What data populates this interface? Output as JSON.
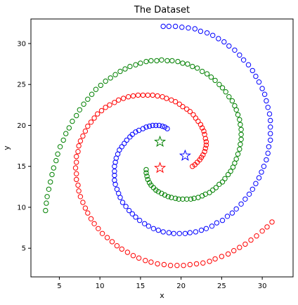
{
  "chart_data": {
    "type": "scatter",
    "title": "The Dataset",
    "xlabel": "x",
    "ylabel": "y",
    "xlim": [
      1.5,
      33.8
    ],
    "ylim": [
      1.5,
      33.0
    ],
    "xticks": [
      5,
      10,
      15,
      20,
      25,
      30
    ],
    "yticks": [
      5,
      10,
      15,
      20,
      25,
      30
    ],
    "grid": false,
    "colors": {
      "red": "#ff0000",
      "green": "#008000",
      "blue": "#0000ff"
    },
    "spiral_series": [
      {
        "color": "green",
        "marker": "hollow-circle",
        "points": [
          [
            15.7,
            14.6
          ],
          [
            15.7,
            14.2
          ],
          [
            15.8,
            13.8
          ],
          [
            15.9,
            13.4
          ],
          [
            16.1,
            13.0
          ],
          [
            16.3,
            12.7
          ],
          [
            16.6,
            12.4
          ],
          [
            16.9,
            12.1
          ],
          [
            17.2,
            11.9
          ],
          [
            17.6,
            11.7
          ],
          [
            18.0,
            11.5
          ],
          [
            18.4,
            11.3
          ],
          [
            18.8,
            11.2
          ],
          [
            19.3,
            11.1
          ],
          [
            19.7,
            11.0
          ],
          [
            20.2,
            11.0
          ],
          [
            20.7,
            11.0
          ],
          [
            21.2,
            11.0
          ],
          [
            21.6,
            11.1
          ],
          [
            22.1,
            11.2
          ],
          [
            22.6,
            11.4
          ],
          [
            23.0,
            11.6
          ],
          [
            23.5,
            11.8
          ],
          [
            23.9,
            12.1
          ],
          [
            24.3,
            12.4
          ],
          [
            24.7,
            12.8
          ],
          [
            25.1,
            13.1
          ],
          [
            25.4,
            13.5
          ],
          [
            25.8,
            14.0
          ],
          [
            26.1,
            14.4
          ],
          [
            26.4,
            14.9
          ],
          [
            26.6,
            15.4
          ],
          [
            26.8,
            15.9
          ],
          [
            27.0,
            16.5
          ],
          [
            27.2,
            17.1
          ],
          [
            27.3,
            17.7
          ],
          [
            27.4,
            18.3
          ],
          [
            27.4,
            18.9
          ],
          [
            27.4,
            19.5
          ],
          [
            27.3,
            20.1
          ],
          [
            27.2,
            20.7
          ],
          [
            27.0,
            21.3
          ],
          [
            26.8,
            21.9
          ],
          [
            26.6,
            22.4
          ],
          [
            26.3,
            23.0
          ],
          [
            25.9,
            23.5
          ],
          [
            25.5,
            24.1
          ],
          [
            25.1,
            24.6
          ],
          [
            24.7,
            25.0
          ],
          [
            24.2,
            25.5
          ],
          [
            23.7,
            25.9
          ],
          [
            23.2,
            26.3
          ],
          [
            22.6,
            26.6
          ],
          [
            22.0,
            27.0
          ],
          [
            21.4,
            27.2
          ],
          [
            20.8,
            27.5
          ],
          [
            20.2,
            27.6
          ],
          [
            19.6,
            27.8
          ],
          [
            18.9,
            27.9
          ],
          [
            18.3,
            27.9
          ],
          [
            17.6,
            28.0
          ],
          [
            17.0,
            27.9
          ],
          [
            16.3,
            27.9
          ],
          [
            15.7,
            27.8
          ],
          [
            15.0,
            27.6
          ],
          [
            14.4,
            27.4
          ],
          [
            13.7,
            27.2
          ],
          [
            13.1,
            26.9
          ],
          [
            12.5,
            26.6
          ],
          [
            11.9,
            26.2
          ],
          [
            11.3,
            25.8
          ],
          [
            10.7,
            25.4
          ],
          [
            10.1,
            24.9
          ],
          [
            9.5,
            24.4
          ],
          [
            9.0,
            23.8
          ],
          [
            8.5,
            23.2
          ],
          [
            8.0,
            22.6
          ],
          [
            7.5,
            21.9
          ],
          [
            7.1,
            21.2
          ],
          [
            6.6,
            20.5
          ],
          [
            6.2,
            19.7
          ],
          [
            5.8,
            19.0
          ],
          [
            5.5,
            18.2
          ],
          [
            5.1,
            17.4
          ],
          [
            4.8,
            16.5
          ],
          [
            4.6,
            15.7
          ],
          [
            4.3,
            14.8
          ],
          [
            4.1,
            14.0
          ],
          [
            3.9,
            13.1
          ],
          [
            3.7,
            12.2
          ],
          [
            3.5,
            11.3
          ],
          [
            3.4,
            10.5
          ],
          [
            3.3,
            9.6
          ]
        ]
      },
      {
        "color": "red",
        "marker": "hollow-circle",
        "points": [
          [
            21.4,
            15.0
          ],
          [
            21.7,
            15.2
          ],
          [
            22.0,
            15.5
          ],
          [
            22.3,
            15.8
          ],
          [
            22.5,
            16.1
          ],
          [
            22.7,
            16.4
          ],
          [
            22.9,
            16.8
          ],
          [
            23.0,
            17.2
          ],
          [
            23.1,
            17.6
          ],
          [
            23.1,
            18.0
          ],
          [
            23.0,
            18.4
          ],
          [
            22.9,
            18.9
          ],
          [
            22.8,
            19.3
          ],
          [
            22.6,
            19.7
          ],
          [
            22.4,
            20.1
          ],
          [
            22.1,
            20.5
          ],
          [
            21.8,
            20.9
          ],
          [
            21.5,
            21.3
          ],
          [
            21.1,
            21.7
          ],
          [
            20.7,
            22.0
          ],
          [
            20.2,
            22.3
          ],
          [
            19.8,
            22.6
          ],
          [
            19.3,
            22.9
          ],
          [
            18.8,
            23.1
          ],
          [
            18.2,
            23.3
          ],
          [
            17.7,
            23.5
          ],
          [
            17.1,
            23.6
          ],
          [
            16.5,
            23.7
          ],
          [
            15.9,
            23.7
          ],
          [
            15.3,
            23.7
          ],
          [
            14.7,
            23.7
          ],
          [
            14.1,
            23.6
          ],
          [
            13.5,
            23.5
          ],
          [
            12.9,
            23.3
          ],
          [
            12.3,
            23.1
          ],
          [
            11.8,
            22.8
          ],
          [
            11.2,
            22.5
          ],
          [
            10.7,
            22.2
          ],
          [
            10.2,
            21.8
          ],
          [
            9.7,
            21.4
          ],
          [
            9.3,
            20.9
          ],
          [
            8.9,
            20.4
          ],
          [
            8.5,
            19.9
          ],
          [
            8.2,
            19.3
          ],
          [
            7.9,
            18.7
          ],
          [
            7.6,
            18.1
          ],
          [
            7.4,
            17.5
          ],
          [
            7.3,
            16.8
          ],
          [
            7.1,
            16.2
          ],
          [
            7.1,
            15.5
          ],
          [
            7.0,
            14.8
          ],
          [
            7.1,
            14.1
          ],
          [
            7.1,
            13.4
          ],
          [
            7.3,
            12.7
          ],
          [
            7.4,
            12.0
          ],
          [
            7.6,
            11.3
          ],
          [
            7.9,
            10.6
          ],
          [
            8.2,
            9.9
          ],
          [
            8.5,
            9.3
          ],
          [
            8.9,
            8.6
          ],
          [
            9.3,
            8.0
          ],
          [
            9.8,
            7.4
          ],
          [
            10.3,
            6.8
          ],
          [
            10.9,
            6.3
          ],
          [
            11.5,
            5.8
          ],
          [
            12.1,
            5.3
          ],
          [
            12.7,
            4.9
          ],
          [
            13.4,
            4.5
          ],
          [
            14.1,
            4.1
          ],
          [
            14.8,
            3.8
          ],
          [
            15.6,
            3.5
          ],
          [
            16.3,
            3.3
          ],
          [
            17.1,
            3.1
          ],
          [
            17.9,
            3.0
          ],
          [
            18.7,
            2.9
          ],
          [
            19.5,
            2.9
          ],
          [
            20.3,
            2.9
          ],
          [
            21.1,
            3.0
          ],
          [
            21.9,
            3.1
          ],
          [
            22.7,
            3.2
          ],
          [
            23.5,
            3.4
          ],
          [
            24.2,
            3.7
          ],
          [
            25.0,
            4.0
          ],
          [
            25.8,
            4.3
          ],
          [
            26.5,
            4.7
          ],
          [
            27.2,
            5.1
          ],
          [
            27.9,
            5.5
          ],
          [
            28.6,
            6.0
          ],
          [
            29.3,
            6.5
          ],
          [
            30.0,
            7.1
          ],
          [
            30.6,
            7.6
          ],
          [
            31.2,
            8.2
          ]
        ]
      },
      {
        "color": "blue",
        "marker": "hollow-circle",
        "points": [
          [
            18.3,
            19.6
          ],
          [
            18.0,
            19.8
          ],
          [
            17.7,
            19.9
          ],
          [
            17.3,
            20.0
          ],
          [
            16.9,
            20.0
          ],
          [
            16.5,
            20.0
          ],
          [
            16.1,
            19.9
          ],
          [
            15.7,
            19.8
          ],
          [
            15.3,
            19.6
          ],
          [
            14.8,
            19.4
          ],
          [
            14.4,
            19.2
          ],
          [
            14.0,
            18.9
          ],
          [
            13.7,
            18.6
          ],
          [
            13.3,
            18.2
          ],
          [
            13.0,
            17.8
          ],
          [
            12.7,
            17.4
          ],
          [
            12.4,
            17.0
          ],
          [
            12.2,
            16.5
          ],
          [
            12.0,
            16.0
          ],
          [
            11.9,
            15.5
          ],
          [
            11.8,
            15.0
          ],
          [
            11.8,
            14.4
          ],
          [
            11.8,
            13.9
          ],
          [
            11.8,
            13.3
          ],
          [
            11.9,
            12.8
          ],
          [
            12.1,
            12.2
          ],
          [
            12.3,
            11.7
          ],
          [
            12.5,
            11.2
          ],
          [
            12.8,
            10.6
          ],
          [
            13.2,
            10.1
          ],
          [
            13.6,
            9.6
          ],
          [
            14.0,
            9.2
          ],
          [
            14.4,
            8.8
          ],
          [
            14.9,
            8.4
          ],
          [
            15.5,
            8.0
          ],
          [
            16.0,
            7.7
          ],
          [
            16.6,
            7.4
          ],
          [
            17.2,
            7.2
          ],
          [
            17.8,
            7.0
          ],
          [
            18.5,
            6.9
          ],
          [
            19.1,
            6.8
          ],
          [
            19.8,
            6.8
          ],
          [
            20.5,
            6.8
          ],
          [
            21.1,
            6.9
          ],
          [
            21.8,
            7.0
          ],
          [
            22.5,
            7.2
          ],
          [
            23.1,
            7.4
          ],
          [
            23.8,
            7.7
          ],
          [
            24.4,
            8.1
          ],
          [
            25.1,
            8.4
          ],
          [
            25.7,
            8.9
          ],
          [
            26.3,
            9.3
          ],
          [
            26.8,
            9.8
          ],
          [
            27.4,
            10.4
          ],
          [
            27.9,
            11.0
          ],
          [
            28.4,
            11.6
          ],
          [
            28.8,
            12.2
          ],
          [
            29.2,
            12.9
          ],
          [
            29.6,
            13.6
          ],
          [
            29.9,
            14.3
          ],
          [
            30.2,
            15.0
          ],
          [
            30.5,
            15.8
          ],
          [
            30.7,
            16.6
          ],
          [
            30.8,
            17.4
          ],
          [
            31.0,
            18.2
          ],
          [
            31.0,
            19.0
          ],
          [
            31.0,
            19.8
          ],
          [
            31.0,
            20.6
          ],
          [
            30.9,
            21.4
          ],
          [
            30.7,
            22.2
          ],
          [
            30.5,
            23.0
          ],
          [
            30.3,
            23.8
          ],
          [
            30.0,
            24.5
          ],
          [
            29.6,
            25.3
          ],
          [
            29.2,
            26.0
          ],
          [
            28.8,
            26.7
          ],
          [
            28.3,
            27.4
          ],
          [
            27.7,
            28.0
          ],
          [
            27.2,
            28.6
          ],
          [
            26.6,
            29.2
          ],
          [
            25.9,
            29.7
          ],
          [
            25.3,
            30.2
          ],
          [
            24.6,
            30.6
          ],
          [
            23.9,
            31.0
          ],
          [
            23.2,
            31.3
          ],
          [
            22.4,
            31.5
          ],
          [
            21.7,
            31.8
          ],
          [
            20.9,
            31.9
          ],
          [
            20.1,
            32.0
          ],
          [
            19.3,
            32.1
          ],
          [
            18.5,
            32.1
          ],
          [
            17.8,
            32.1
          ]
        ]
      }
    ],
    "star_series": [
      {
        "color": "green",
        "marker": "hollow-star",
        "points": [
          [
            17.4,
            18.0
          ]
        ]
      },
      {
        "color": "red",
        "marker": "hollow-star",
        "points": [
          [
            17.4,
            14.8
          ]
        ]
      },
      {
        "color": "blue",
        "marker": "hollow-star",
        "points": [
          [
            20.5,
            16.3
          ]
        ]
      }
    ]
  }
}
